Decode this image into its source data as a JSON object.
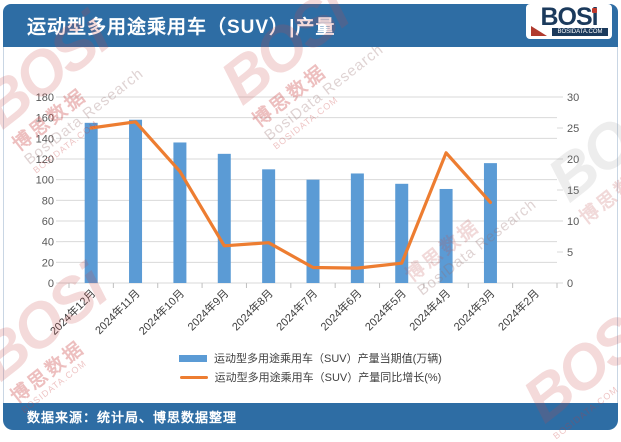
{
  "header": {
    "title": "运动型多用途乘用车（SUV）|产量"
  },
  "logo": {
    "brand": "BOSi",
    "site": "BOSIDATA.COM"
  },
  "footer": {
    "source": "数据来源：统计局、博思数据整理"
  },
  "watermark": {
    "brand": "BOSi",
    "cn": "博思数据",
    "en": "BosiData Research",
    "site": "BOSIDATA.COM"
  },
  "colors": {
    "header_bg": "#2E6DA4",
    "footer_bg": "#2E6DA4",
    "bar": "#5B9BD5",
    "line": "#ED7D31",
    "grid": "#D9D9D9",
    "axis_text": "#595959",
    "x_label_text": "#3F3F3F",
    "panel_border": "#C9D6E4",
    "logo_navy": "#1B3A5C",
    "logo_red": "#B03A2E"
  },
  "chart_data": {
    "type": "bar",
    "title": "运动型多用途乘用车（SUV）|产量",
    "categories": [
      "2024年12月",
      "2024年11月",
      "2024年10月",
      "2024年9月",
      "2024年8月",
      "2024年7月",
      "2024年6月",
      "2024年5月",
      "2024年4月",
      "2024年3月",
      "2024年2月"
    ],
    "series": [
      {
        "name": "运动型多用途乘用车（SUV）产量当期值(万辆)",
        "type": "bar",
        "y_axis": "left",
        "color": "#5B9BD5",
        "values": [
          155,
          158,
          136,
          125,
          110,
          100,
          106,
          96,
          91,
          116,
          null
        ]
      },
      {
        "name": "运动型多用途乘用车（SUV）产量同比增长(%)",
        "type": "line",
        "y_axis": "right",
        "color": "#ED7D31",
        "values": [
          25,
          26,
          18,
          6,
          6.5,
          2.5,
          2.4,
          3.2,
          21,
          13,
          null
        ]
      }
    ],
    "left_axis": {
      "min": 0,
      "max": 180,
      "step": 20,
      "ticks": [
        0,
        20,
        40,
        60,
        80,
        100,
        120,
        140,
        160,
        180
      ]
    },
    "right_axis": {
      "min": 0,
      "max": 30,
      "step": 5,
      "ticks": [
        0,
        5,
        10,
        15,
        20,
        25,
        30
      ]
    },
    "grid": true,
    "legend_position": "bottom"
  }
}
